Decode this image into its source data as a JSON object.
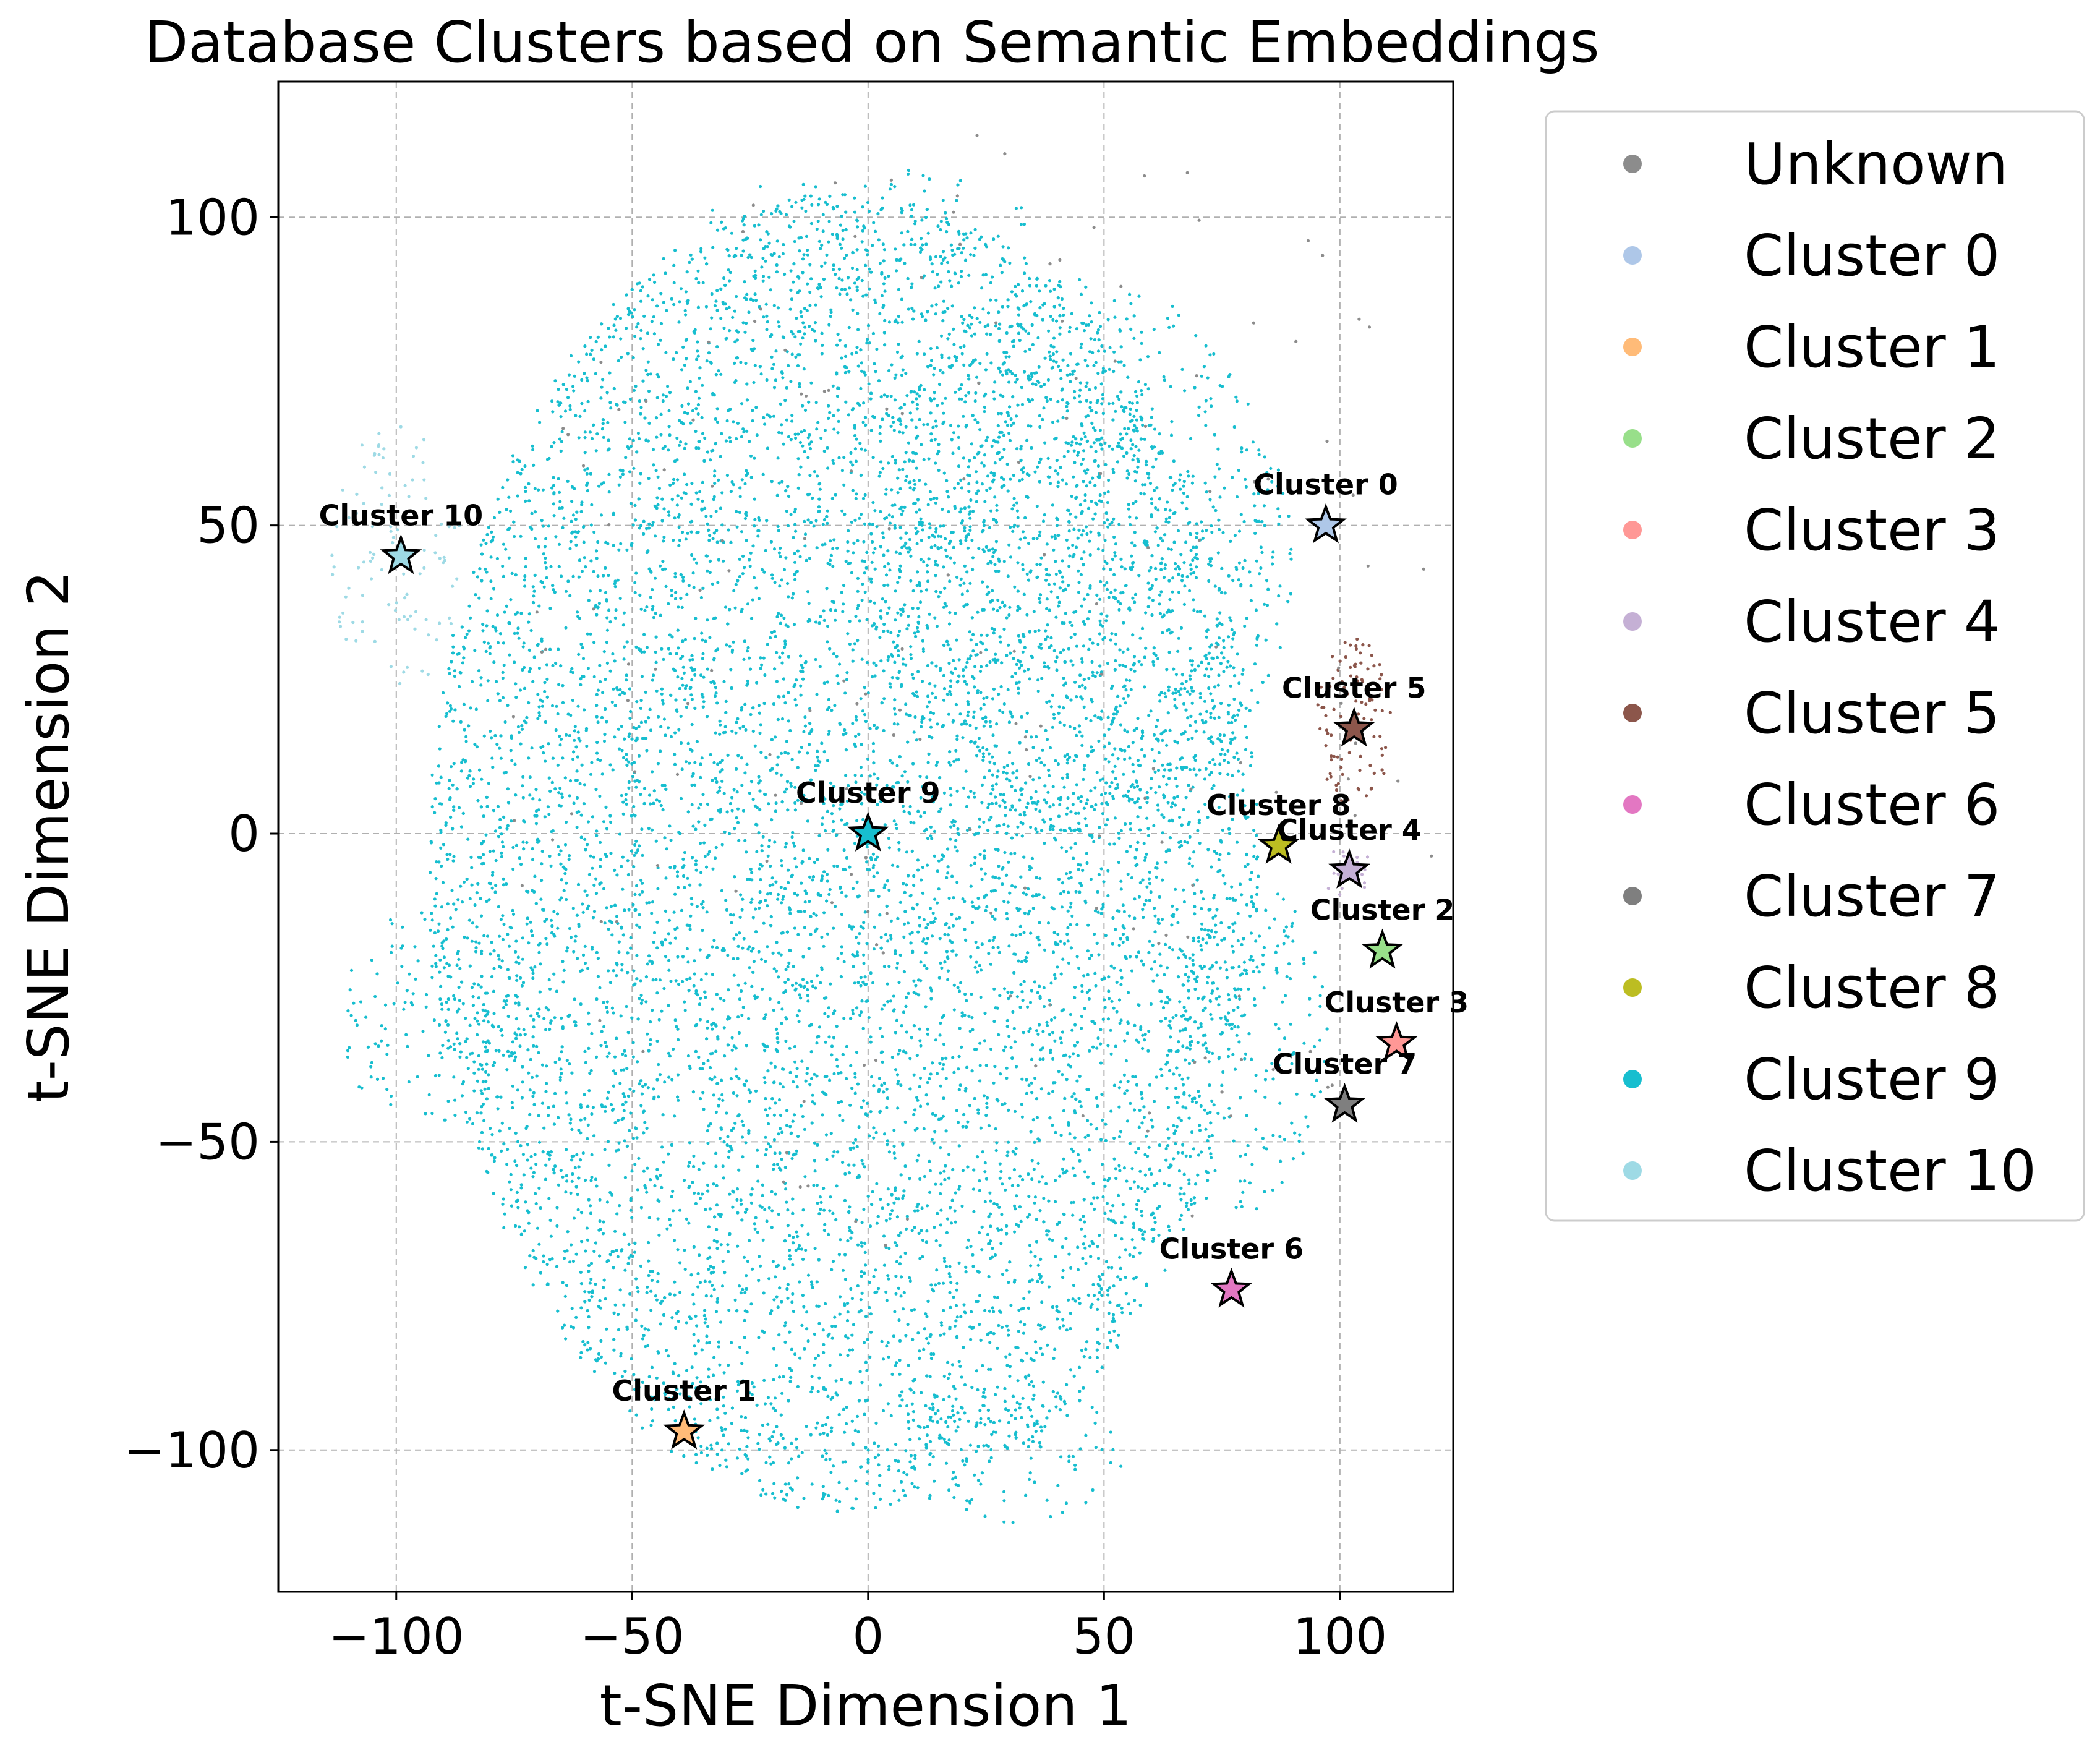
{
  "chart_data": {
    "type": "scatter",
    "title": "Database Clusters based on Semantic Embeddings",
    "xlabel": "t-SNE Dimension 1",
    "ylabel": "t-SNE Dimension 2",
    "xlim": [
      -125,
      124
    ],
    "ylim": [
      -123,
      122
    ],
    "xticks": [
      -100,
      -50,
      0,
      50,
      100
    ],
    "yticks": [
      -100,
      -50,
      0,
      50,
      100
    ],
    "xtick_labels": [
      "−100",
      "−50",
      "0",
      "50",
      "100"
    ],
    "ytick_labels": [
      "−100",
      "−50",
      "0",
      "50",
      "100"
    ],
    "grid": true,
    "legend_position": "outside-right",
    "legend": [
      {
        "name": "Unknown",
        "color": "#8c8c8c"
      },
      {
        "name": "Cluster 0",
        "color": "#aec7e8"
      },
      {
        "name": "Cluster 1",
        "color": "#ffbb78"
      },
      {
        "name": "Cluster 2",
        "color": "#98df8a"
      },
      {
        "name": "Cluster 3",
        "color": "#ff9896"
      },
      {
        "name": "Cluster 4",
        "color": "#c5b0d5"
      },
      {
        "name": "Cluster 5",
        "color": "#8c564b"
      },
      {
        "name": "Cluster 6",
        "color": "#e377c2"
      },
      {
        "name": "Cluster 7",
        "color": "#7f7f7f"
      },
      {
        "name": "Cluster 8",
        "color": "#bcbd22"
      },
      {
        "name": "Cluster 9",
        "color": "#17becf"
      },
      {
        "name": "Cluster 10",
        "color": "#9edae5"
      }
    ],
    "centroids": [
      {
        "label": "Cluster 0",
        "x": 97,
        "y": 50,
        "color": "#aec7e8"
      },
      {
        "label": "Cluster 1",
        "x": -39,
        "y": -97,
        "color": "#ffbb78"
      },
      {
        "label": "Cluster 2",
        "x": 109,
        "y": -19,
        "color": "#98df8a"
      },
      {
        "label": "Cluster 3",
        "x": 112,
        "y": -34,
        "color": "#ff9896"
      },
      {
        "label": "Cluster 4",
        "x": 102,
        "y": -6,
        "color": "#c5b0d5"
      },
      {
        "label": "Cluster 5",
        "x": 103,
        "y": 17,
        "color": "#8c564b"
      },
      {
        "label": "Cluster 6",
        "x": 77,
        "y": -74,
        "color": "#e377c2"
      },
      {
        "label": "Cluster 7",
        "x": 101,
        "y": -44,
        "color": "#7f7f7f"
      },
      {
        "label": "Cluster 8",
        "x": 87,
        "y": -2,
        "color": "#bcbd22"
      },
      {
        "label": "Cluster 9",
        "x": 0,
        "y": 0,
        "color": "#17becf"
      },
      {
        "label": "Cluster 10",
        "x": -99,
        "y": 45,
        "color": "#9edae5"
      }
    ],
    "point_regions": [
      {
        "series": "Cluster 9",
        "shape": "ellipse",
        "cx": -5,
        "cy": -3,
        "rx": 88,
        "ry": 107,
        "density": 0.55
      },
      {
        "series": "Cluster 9",
        "shape": "ellipse",
        "cx": 45,
        "cy": 45,
        "rx": 45,
        "ry": 45,
        "density": 0.25
      },
      {
        "series": "Cluster 9",
        "shape": "ellipse",
        "cx": 0,
        "cy": 98,
        "rx": 35,
        "ry": 10,
        "density": 0.15
      },
      {
        "series": "Cluster 9",
        "shape": "ellipse",
        "cx": -93,
        "cy": -30,
        "rx": 20,
        "ry": 18,
        "density": 0.25
      },
      {
        "series": "Cluster 9",
        "shape": "ellipse",
        "cx": 80,
        "cy": -35,
        "rx": 18,
        "ry": 28,
        "density": 0.25
      },
      {
        "series": "Cluster 9",
        "shape": "ellipse",
        "cx": 30,
        "cy": -100,
        "rx": 25,
        "ry": 12,
        "density": 0.2
      },
      {
        "series": "Cluster 10",
        "shape": "ellipse",
        "cx": -100,
        "cy": 45,
        "rx": 14,
        "ry": 22,
        "density": 0.2
      },
      {
        "series": "Cluster 5",
        "shape": "ellipse",
        "cx": 103,
        "cy": 18,
        "rx": 8,
        "ry": 14,
        "density": 0.5
      },
      {
        "series": "Cluster 4",
        "shape": "ellipse",
        "cx": 101,
        "cy": -6,
        "rx": 6,
        "ry": 4,
        "density": 0.5
      },
      {
        "series": "Unknown",
        "shape": "ellipse",
        "cx": 30,
        "cy": 20,
        "rx": 110,
        "ry": 95,
        "density": 0.01
      }
    ]
  }
}
